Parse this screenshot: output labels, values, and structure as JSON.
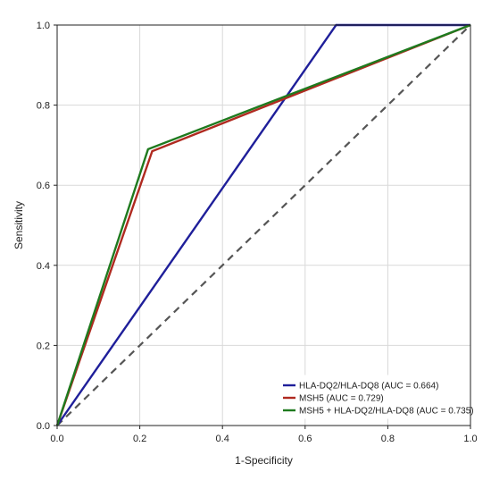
{
  "chart_data": {
    "type": "line",
    "title": "",
    "xlabel": "1-Specificity",
    "ylabel": "Sensitivity",
    "xlim": [
      0,
      1
    ],
    "ylim": [
      0,
      1
    ],
    "x_ticks": [
      "0.0",
      "0.2",
      "0.4",
      "0.6",
      "0.8",
      "1.0"
    ],
    "y_ticks": [
      "0.0",
      "0.2",
      "0.4",
      "0.6",
      "0.8",
      "1.0"
    ],
    "grid": true,
    "legend_position": "bottom-right",
    "reference_line": {
      "x": [
        0,
        1
      ],
      "y": [
        0,
        1
      ],
      "style": "dashed",
      "color": "#555555"
    },
    "series": [
      {
        "name": "HLA-DQ2/HLA-DQ8 (AUC = 0.664)",
        "color": "#1f1f9a",
        "x": [
          0,
          0.675,
          1.0
        ],
        "y": [
          0,
          1.0,
          1.0
        ]
      },
      {
        "name": "MSH5 (AUC = 0.729)",
        "color": "#b02a20",
        "x": [
          0,
          0.23,
          1.0
        ],
        "y": [
          0,
          0.685,
          1.0
        ]
      },
      {
        "name": "MSH5 + HLA-DQ2/HLA-DQ8 (AUC = 0.735)",
        "color": "#1e7a1e",
        "x": [
          0,
          0.22,
          1.0
        ],
        "y": [
          0,
          0.69,
          1.0
        ]
      }
    ]
  }
}
